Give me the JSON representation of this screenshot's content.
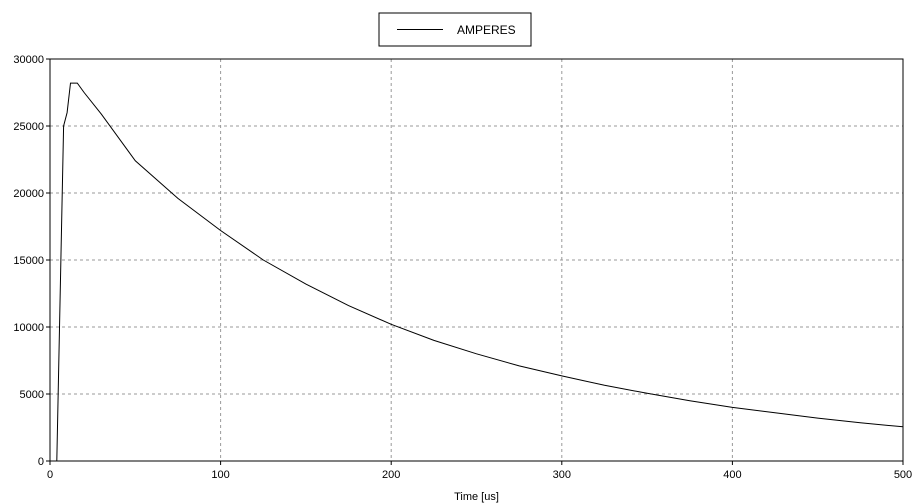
{
  "chart_data": {
    "type": "line",
    "title": "",
    "xlabel": "Time [us]",
    "ylabel": "",
    "xlim": [
      0,
      500
    ],
    "ylim": [
      0,
      30000
    ],
    "x_ticks": [
      0,
      100,
      200,
      300,
      400,
      500
    ],
    "y_ticks": [
      0,
      5000,
      10000,
      15000,
      20000,
      25000,
      30000
    ],
    "x_tick_labels": [
      "0",
      "100",
      "200",
      "300",
      "400",
      "500"
    ],
    "y_tick_labels": [
      "0",
      "5000",
      "10000",
      "15000",
      "20000",
      "25000",
      "30000"
    ],
    "grid": true,
    "legend_position": "top-center",
    "series": [
      {
        "name": "AMPERES",
        "color": "#000000",
        "x": [
          4,
          8,
          10,
          12,
          16,
          20,
          30,
          50,
          75,
          100,
          125,
          150,
          175,
          200,
          225,
          250,
          275,
          300,
          325,
          350,
          375,
          400,
          425,
          450,
          475,
          500
        ],
        "y": [
          0,
          25000,
          26000,
          28200,
          28200,
          27500,
          25900,
          22400,
          19600,
          17200,
          15000,
          13200,
          11600,
          10200,
          9000,
          8000,
          7100,
          6350,
          5650,
          5050,
          4500,
          4000,
          3600,
          3200,
          2850,
          2550
        ]
      }
    ]
  }
}
